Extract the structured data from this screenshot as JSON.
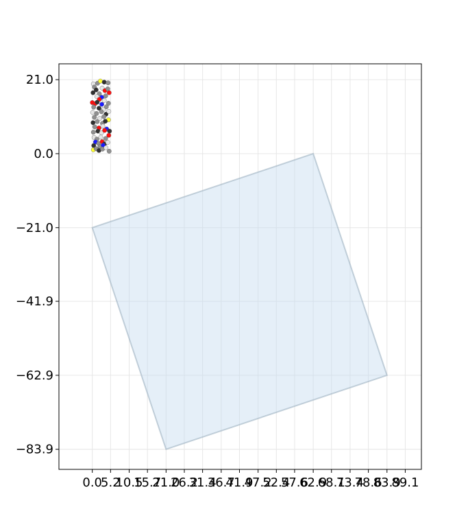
{
  "chart_data": {
    "type": "scatter",
    "title": "",
    "xlabel": "",
    "ylabel": "",
    "xlim": [
      -9.5,
      93.7
    ],
    "ylim": [
      -89.6,
      25.5
    ],
    "grid": true,
    "x_ticks": [
      {
        "value": 0.0,
        "label": "0.0"
      },
      {
        "value": 5.2,
        "label": "5.2"
      },
      {
        "value": 10.5,
        "label": "10.5"
      },
      {
        "value": 15.7,
        "label": "15.7"
      },
      {
        "value": 21.0,
        "label": "21.0"
      },
      {
        "value": 26.2,
        "label": "26.2"
      },
      {
        "value": 31.4,
        "label": "31.4"
      },
      {
        "value": 36.7,
        "label": "36.7"
      },
      {
        "value": 41.9,
        "label": "41.9"
      },
      {
        "value": 47.2,
        "label": "47.2"
      },
      {
        "value": 52.4,
        "label": "52.4"
      },
      {
        "value": 57.6,
        "label": "57.6"
      },
      {
        "value": 62.9,
        "label": "62.9"
      },
      {
        "value": 68.1,
        "label": "68.1"
      },
      {
        "value": 73.4,
        "label": "73.4"
      },
      {
        "value": 78.6,
        "label": "78.6"
      },
      {
        "value": 83.9,
        "label": "83.9"
      },
      {
        "value": 89.1,
        "label": "89.1"
      }
    ],
    "y_ticks": [
      {
        "value": 21.0,
        "label": "21.0"
      },
      {
        "value": 0.0,
        "label": "0.0"
      },
      {
        "value": -21.0,
        "label": "−21.0"
      },
      {
        "value": -41.9,
        "label": "−41.9"
      },
      {
        "value": -62.9,
        "label": "−62.9"
      },
      {
        "value": -83.9,
        "label": "−83.9"
      }
    ],
    "polygon": {
      "points": [
        [
          62.9,
          0.0
        ],
        [
          83.9,
          -62.9
        ],
        [
          21.0,
          -83.9
        ],
        [
          0.0,
          -21.0
        ]
      ],
      "fill": "#c6dbef",
      "fill_opacity": 0.45,
      "stroke": "#9fb3c2"
    },
    "atom_colors": {
      "C": "#909090",
      "Cdark": "#303030",
      "H": "#e6e6e6",
      "O": "#ff0d0d",
      "N": "#1a1aff",
      "S": "#ffff30"
    },
    "points": [
      {
        "x": 0.3,
        "y": 19.8,
        "el": "H"
      },
      {
        "x": 1.5,
        "y": 20.0,
        "el": "C"
      },
      {
        "x": 2.3,
        "y": 20.6,
        "el": "S"
      },
      {
        "x": 3.4,
        "y": 20.3,
        "el": "Cdark"
      },
      {
        "x": 4.5,
        "y": 20.1,
        "el": "C"
      },
      {
        "x": 0.6,
        "y": 18.9,
        "el": "C"
      },
      {
        "x": 1.1,
        "y": 18.1,
        "el": "Cdark"
      },
      {
        "x": 2.8,
        "y": 18.6,
        "el": "H"
      },
      {
        "x": 3.6,
        "y": 17.9,
        "el": "O"
      },
      {
        "x": 4.4,
        "y": 18.4,
        "el": "C"
      },
      {
        "x": 0.2,
        "y": 17.3,
        "el": "Cdark"
      },
      {
        "x": 2.0,
        "y": 17.0,
        "el": "C"
      },
      {
        "x": 4.8,
        "y": 17.3,
        "el": "O"
      },
      {
        "x": 1.3,
        "y": 16.2,
        "el": "H"
      },
      {
        "x": 2.7,
        "y": 16.0,
        "el": "N"
      },
      {
        "x": 3.8,
        "y": 16.4,
        "el": "C"
      },
      {
        "x": 2.0,
        "y": 15.4,
        "el": "O"
      },
      {
        "x": 3.4,
        "y": 15.1,
        "el": "H"
      },
      {
        "x": 0.0,
        "y": 14.5,
        "el": "O"
      },
      {
        "x": 0.8,
        "y": 14.2,
        "el": "O"
      },
      {
        "x": 1.4,
        "y": 14.6,
        "el": "Cdark"
      },
      {
        "x": 2.7,
        "y": 14.0,
        "el": "N"
      },
      {
        "x": 4.6,
        "y": 14.3,
        "el": "C"
      },
      {
        "x": 0.4,
        "y": 13.2,
        "el": "C"
      },
      {
        "x": 1.9,
        "y": 12.9,
        "el": "Cdark"
      },
      {
        "x": 3.2,
        "y": 12.6,
        "el": "H"
      },
      {
        "x": 4.0,
        "y": 13.3,
        "el": "C"
      },
      {
        "x": 0.1,
        "y": 11.7,
        "el": "H"
      },
      {
        "x": 1.2,
        "y": 11.4,
        "el": "C"
      },
      {
        "x": 2.6,
        "y": 11.9,
        "el": "C"
      },
      {
        "x": 3.9,
        "y": 11.2,
        "el": "Cdark"
      },
      {
        "x": 4.7,
        "y": 12.0,
        "el": "H"
      },
      {
        "x": 0.6,
        "y": 10.3,
        "el": "C"
      },
      {
        "x": 2.1,
        "y": 10.0,
        "el": "H"
      },
      {
        "x": 3.3,
        "y": 10.5,
        "el": "C"
      },
      {
        "x": 4.6,
        "y": 9.6,
        "el": "S"
      },
      {
        "x": 0.2,
        "y": 8.8,
        "el": "Cdark"
      },
      {
        "x": 1.4,
        "y": 9.1,
        "el": "C"
      },
      {
        "x": 2.9,
        "y": 8.6,
        "el": "C"
      },
      {
        "x": 3.7,
        "y": 9.2,
        "el": "Cdark"
      },
      {
        "x": 0.7,
        "y": 7.6,
        "el": "C"
      },
      {
        "x": 1.9,
        "y": 7.3,
        "el": "O"
      },
      {
        "x": 3.0,
        "y": 7.8,
        "el": "H"
      },
      {
        "x": 4.1,
        "y": 7.0,
        "el": "N"
      },
      {
        "x": 4.9,
        "y": 6.4,
        "el": "Cdark"
      },
      {
        "x": 0.3,
        "y": 6.1,
        "el": "C"
      },
      {
        "x": 1.6,
        "y": 6.4,
        "el": "Cdark"
      },
      {
        "x": 2.6,
        "y": 5.9,
        "el": "H"
      },
      {
        "x": 3.5,
        "y": 6.6,
        "el": "O"
      },
      {
        "x": 4.7,
        "y": 5.2,
        "el": "O"
      },
      {
        "x": 0.5,
        "y": 4.6,
        "el": "H"
      },
      {
        "x": 1.3,
        "y": 4.1,
        "el": "C"
      },
      {
        "x": 2.4,
        "y": 4.7,
        "el": "H"
      },
      {
        "x": 3.8,
        "y": 4.3,
        "el": "C"
      },
      {
        "x": 0.9,
        "y": 3.3,
        "el": "N"
      },
      {
        "x": 1.8,
        "y": 2.9,
        "el": "C"
      },
      {
        "x": 2.8,
        "y": 3.4,
        "el": "O"
      },
      {
        "x": 3.5,
        "y": 2.8,
        "el": "Cdark"
      },
      {
        "x": 4.4,
        "y": 3.2,
        "el": "H"
      },
      {
        "x": 0.4,
        "y": 2.3,
        "el": "Cdark"
      },
      {
        "x": 2.2,
        "y": 2.0,
        "el": "C"
      },
      {
        "x": 3.1,
        "y": 2.4,
        "el": "N"
      },
      {
        "x": 0.3,
        "y": 1.1,
        "el": "S"
      },
      {
        "x": 1.1,
        "y": 1.4,
        "el": "C"
      },
      {
        "x": 1.9,
        "y": 0.9,
        "el": "Cdark"
      },
      {
        "x": 2.9,
        "y": 1.3,
        "el": "C"
      },
      {
        "x": 4.8,
        "y": 0.7,
        "el": "C"
      },
      {
        "x": 3.9,
        "y": 1.7,
        "el": "H"
      }
    ]
  }
}
